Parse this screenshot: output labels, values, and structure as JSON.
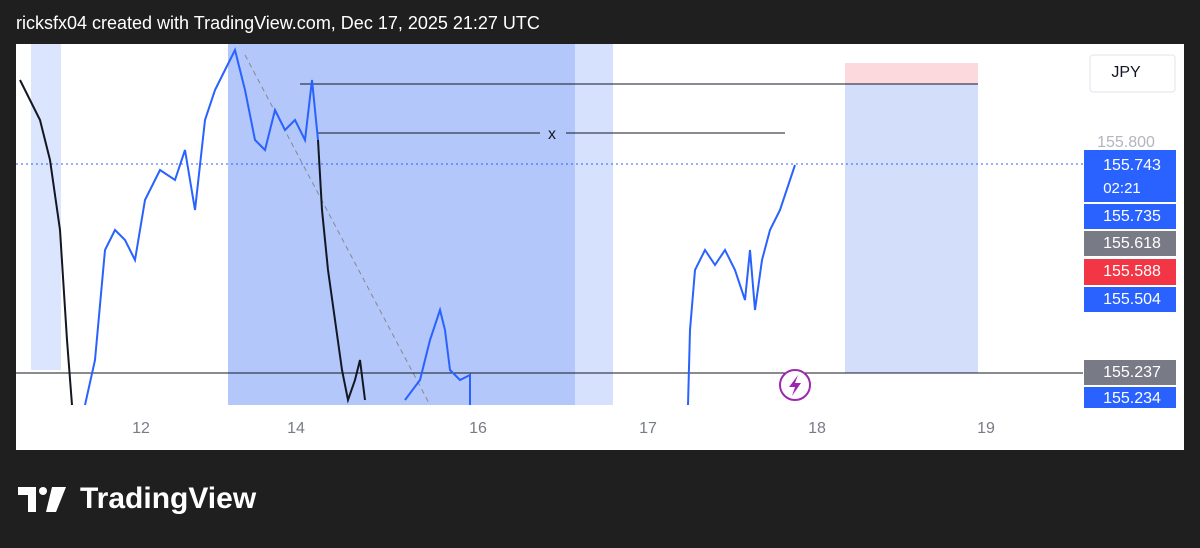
{
  "header": {
    "attribution": "ricksfx04 created with TradingView.com, Dec 17, 2025 21:27 UTC"
  },
  "chart": {
    "currency": "JPY",
    "price_labels": [
      "155.800",
      "155.743",
      "155.735",
      "155.618",
      "155.588",
      "155.504",
      "155.237",
      "155.234"
    ],
    "countdown": "02:21",
    "time_labels": [
      "12",
      "14",
      "16",
      "17",
      "18",
      "19"
    ],
    "marker": "x"
  },
  "footer": {
    "brand": "TradingView"
  }
}
